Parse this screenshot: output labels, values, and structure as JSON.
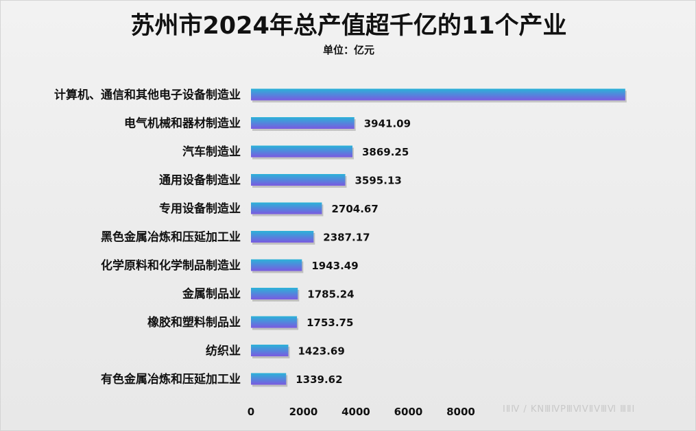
{
  "chart_data": {
    "type": "bar",
    "orientation": "horizontal",
    "title": "苏州市2024年总产值超千亿的11个产业",
    "subtitle": "单位：亿元",
    "categories": [
      "计算机、通信和其他电子设备制造业",
      "电气机械和器材制造业",
      "汽车制造业",
      "通用设备制造业",
      "专用设备制造业",
      "黑色金属冶炼和压延加工业",
      "化学原料和化学制品制造业",
      "金属制品业",
      "橡胶和塑料制品业",
      "纺织业",
      "有色金属冶炼和压延加工业"
    ],
    "values": [
      14270,
      3941.09,
      3869.25,
      3595.13,
      2704.67,
      2387.17,
      1943.49,
      1785.24,
      1753.75,
      1423.69,
      1339.62
    ],
    "data_labels": [
      "",
      "3941.09",
      "3869.25",
      "3595.13",
      "2704.67",
      "2387.17",
      "1943.49",
      "1785.24",
      "1753.75",
      "1423.69",
      "1339.62"
    ],
    "x_ticks": [
      "0",
      "2000",
      "4000",
      "6000",
      "8000"
    ],
    "xlim": [
      0,
      14270
    ],
    "grid": false,
    "legend": "none",
    "bar_gradient": [
      "#2bb3d8",
      "#7a5ae0"
    ]
  },
  "watermark": "ⅠⅡⅣ / KNⅢⅣPⅢⅥⅤⅡⅤⅢⅥ ⅢⅡⅠ"
}
